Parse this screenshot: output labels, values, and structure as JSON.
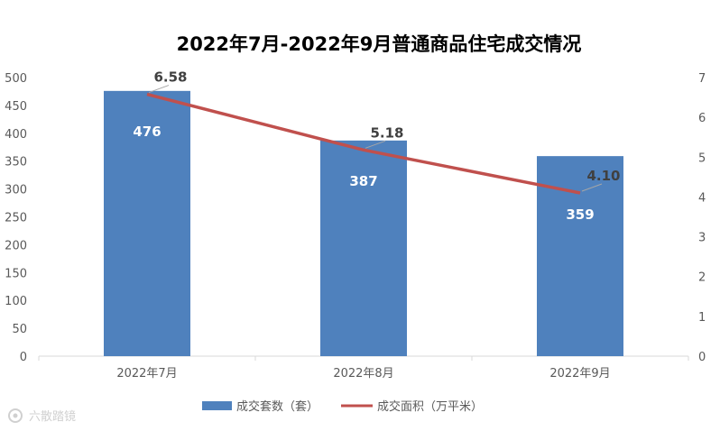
{
  "chart_data": {
    "type": "bar",
    "title": "2022年7月-2022年9月普通商品住宅成交情况",
    "categories": [
      "2022年7月",
      "2022年8月",
      "2022年9月"
    ],
    "series": [
      {
        "name": "成交套数（套）",
        "type": "bar",
        "axis": "left",
        "color": "#4F81BD",
        "values": [
          476,
          387,
          359
        ],
        "labels": [
          "476",
          "387",
          "359"
        ]
      },
      {
        "name": "成交面积（万平米）",
        "type": "line",
        "axis": "right",
        "color": "#C0504D",
        "values": [
          6.58,
          5.18,
          4.1
        ],
        "labels": [
          "6.58",
          "5.18",
          "4.10"
        ]
      }
    ],
    "ylim_left": [
      0,
      500
    ],
    "yticks_left": [
      "0",
      "50",
      "100",
      "150",
      "200",
      "250",
      "300",
      "350",
      "400",
      "450",
      "500"
    ],
    "ylim_right": [
      0,
      7
    ],
    "yticks_right": [
      "0",
      "1",
      "2",
      "3",
      "4",
      "5",
      "6",
      "7"
    ],
    "legend_position": "bottom",
    "grid": false
  },
  "watermark": {
    "icon": "camera-logo-icon",
    "text": "六散踏镜"
  }
}
